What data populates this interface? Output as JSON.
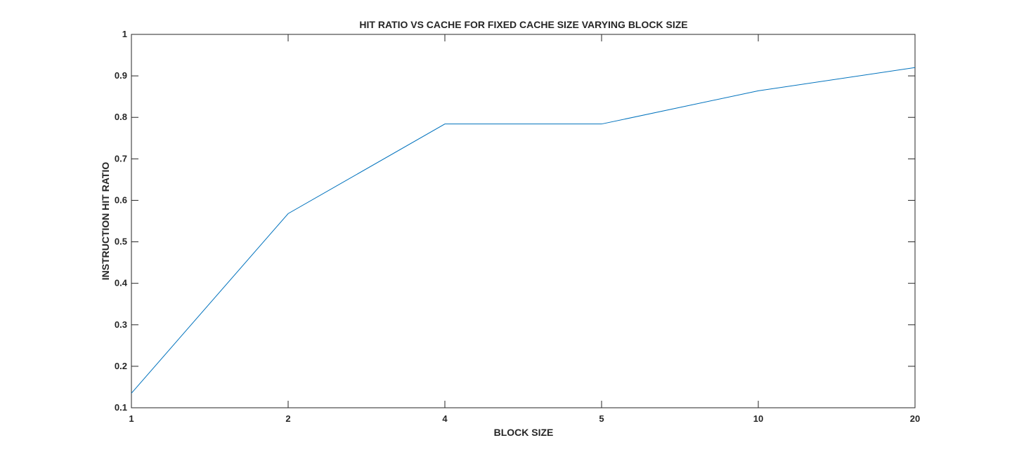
{
  "chart_data": {
    "type": "line",
    "title": "HIT RATIO VS CACHE FOR FIXED CACHE SIZE VARYING BLOCK SIZE",
    "xlabel": "BLOCK SIZE",
    "ylabel": "INSTRUCTION HIT RATIO",
    "x_scale": "categorical",
    "categories": [
      "1",
      "2",
      "4",
      "5",
      "10",
      "20"
    ],
    "ylim": [
      0.1,
      1
    ],
    "yticks": [
      "0.1",
      "0.2",
      "0.3",
      "0.4",
      "0.5",
      "0.6",
      "0.7",
      "0.8",
      "0.9",
      "1"
    ],
    "grid": false,
    "legend": "none",
    "series": [
      {
        "color": "#0072BD",
        "values": [
          0.135,
          0.568,
          0.784,
          0.784,
          0.864,
          0.92
        ]
      }
    ]
  }
}
